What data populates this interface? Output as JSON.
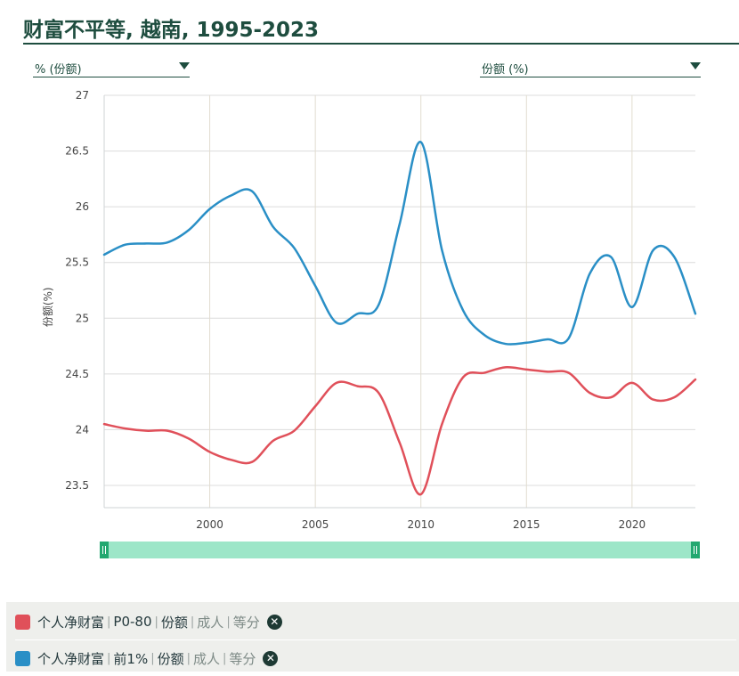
{
  "header": {
    "title": "财富不平等, 越南, 1995-2023"
  },
  "controls": {
    "left_dropdown": {
      "label": "% (份额)"
    },
    "right_dropdown": {
      "label": "份额 (%)"
    }
  },
  "colors": {
    "series_red": "#e0505a",
    "series_blue": "#2a8fc6",
    "slider": "#9de6c8",
    "accent": "#1e4d3f"
  },
  "chart_data": {
    "type": "line",
    "ylabel": "份额(%)",
    "xlim": [
      1995,
      2023
    ],
    "ylim": [
      23.3,
      27
    ],
    "x_ticks": [
      "2000",
      "2005",
      "2010",
      "2015",
      "2020"
    ],
    "y_ticks": [
      "23.5",
      "24",
      "24.5",
      "25",
      "25.5",
      "26",
      "26.5",
      "27"
    ],
    "series": [
      {
        "name": "个人净财富 | P0-80 | 份额 | 成人 | 等分",
        "color": "#e0505a",
        "x": [
          1995,
          1996,
          1997,
          1998,
          1999,
          2000,
          2001,
          2002,
          2003,
          2004,
          2005,
          2006,
          2007,
          2008,
          2009,
          2010,
          2011,
          2012,
          2013,
          2014,
          2015,
          2016,
          2017,
          2018,
          2019,
          2020,
          2021,
          2022,
          2023
        ],
        "y": [
          24.05,
          24.01,
          23.99,
          23.99,
          23.92,
          23.8,
          23.73,
          23.71,
          23.9,
          23.99,
          24.21,
          24.42,
          24.39,
          24.33,
          23.88,
          23.42,
          24.05,
          24.47,
          24.51,
          24.56,
          24.54,
          24.52,
          24.51,
          24.33,
          24.29,
          24.42,
          24.27,
          24.29,
          24.45
        ]
      },
      {
        "name": "个人净财富 | 前1% | 份额 | 成人 | 等分",
        "color": "#2a8fc6",
        "x": [
          1995,
          1996,
          1997,
          1998,
          1999,
          2000,
          2001,
          2002,
          2003,
          2004,
          2005,
          2006,
          2007,
          2008,
          2009,
          2010,
          2011,
          2012,
          2013,
          2014,
          2015,
          2016,
          2017,
          2018,
          2019,
          2020,
          2021,
          2022,
          2023
        ],
        "y": [
          25.57,
          25.66,
          25.67,
          25.68,
          25.79,
          25.98,
          26.1,
          26.14,
          25.82,
          25.63,
          25.29,
          24.96,
          25.04,
          25.12,
          25.85,
          26.58,
          25.61,
          25.07,
          24.85,
          24.77,
          24.78,
          24.81,
          24.82,
          25.4,
          25.55,
          25.1,
          25.61,
          25.55,
          25.04
        ]
      }
    ]
  },
  "legend": {
    "items": [
      {
        "metric": "个人净财富",
        "group": "P0-80",
        "measure": "份额",
        "unit": "成人",
        "split": "等分",
        "color": "#e0505a",
        "remove_icon": "close-icon"
      },
      {
        "metric": "个人净财富",
        "group": "前1%",
        "measure": "份额",
        "unit": "成人",
        "split": "等分",
        "color": "#2a8fc6",
        "remove_icon": "close-icon"
      }
    ]
  }
}
